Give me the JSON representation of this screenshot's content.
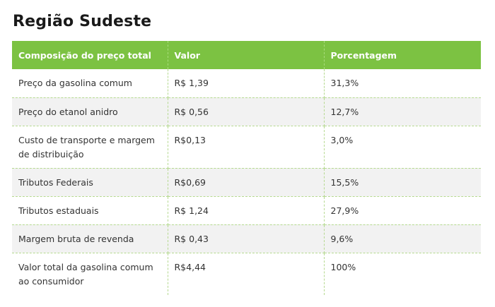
{
  "title": "Região Sudeste",
  "table": {
    "headers": [
      "Composição do preço total",
      "Valor",
      "Porcentagem"
    ],
    "rows": [
      {
        "item": "Preço da gasolina comum",
        "valor": "R$ 1,39",
        "porcentagem": "31,3%"
      },
      {
        "item": "Preço do etanol anidro",
        "valor": "R$ 0,56",
        "porcentagem": "12,7%"
      },
      {
        "item": "Custo de transporte e margem de distribuição",
        "valor": "R$0,13",
        "porcentagem": "3,0%"
      },
      {
        "item": "Tributos Federais",
        "valor": "R$0,69",
        "porcentagem": "15,5%"
      },
      {
        "item": "Tributos estaduais",
        "valor": "R$ 1,24",
        "porcentagem": "27,9%"
      },
      {
        "item": "Margem bruta de revenda",
        "valor": "R$ 0,43",
        "porcentagem": "9,6%"
      },
      {
        "item": "Valor total da gasolina comum ao consumidor",
        "valor": "R$4,44",
        "porcentagem": "100%"
      }
    ]
  },
  "colors": {
    "header_bg": "#7cc242",
    "header_text": "#ffffff",
    "alt_row_bg": "#f2f2f2",
    "divider": "#b5d98f"
  }
}
